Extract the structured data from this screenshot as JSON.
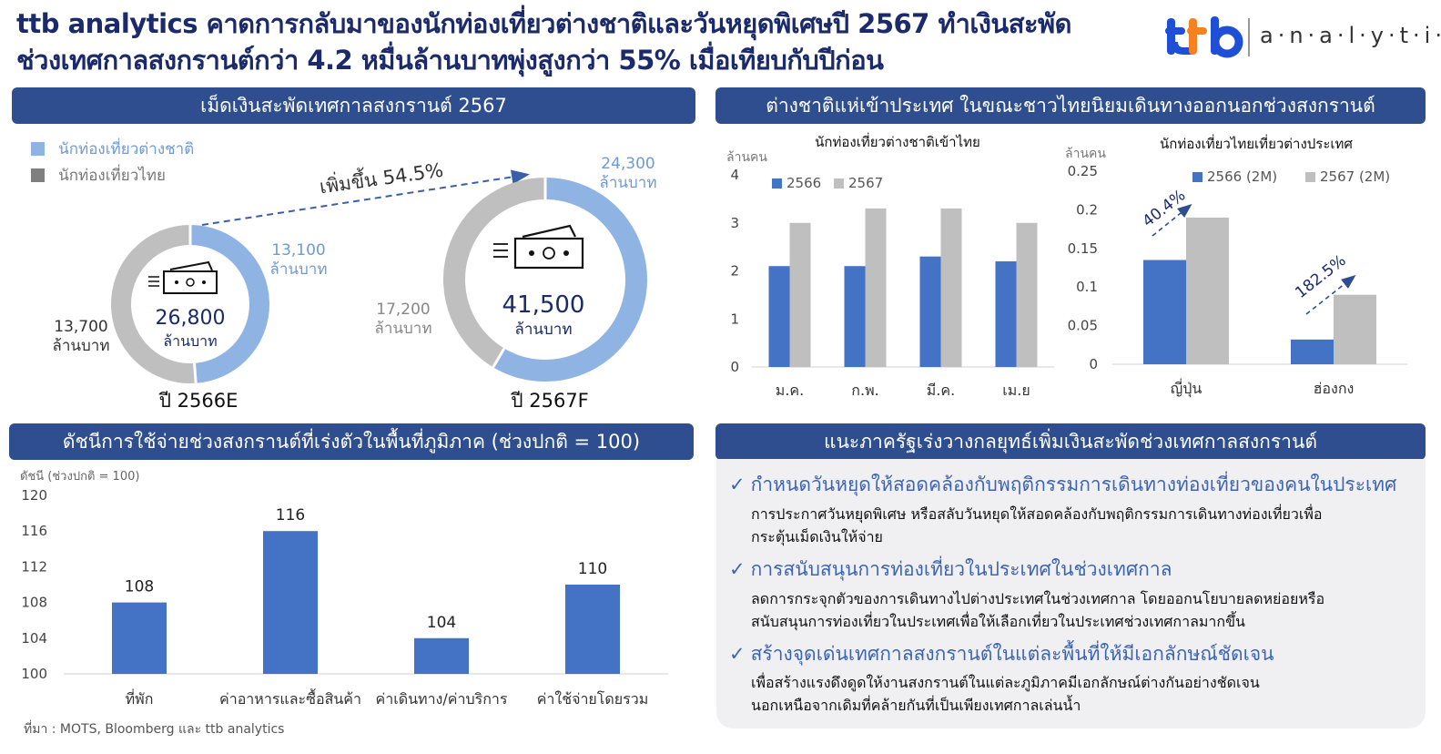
{
  "header": {
    "title_line1": "ttb analytics คาดการกลับมาของนักท่องเที่ยวต่างชาติและวันหยุดพิเศษปี 2567 ทำเงินสะพัด",
    "title_line2": "ช่วงเทศกาลสงกรานต์กว่า 4.2 หมื่นล้านบาทพุ่งสูงกว่า 55% เมื่อเทียบกับปีก่อน",
    "logo_text": "analytics",
    "logo_mark": "ttb"
  },
  "colors": {
    "header_bg": "#2e4e8f",
    "blue": "#4472c4",
    "light_blue": "#8fb4e3",
    "gray": "#bfbfbf",
    "dark_gray": "#7f7f7f",
    "navy": "#1b2a6b"
  },
  "panel1": {
    "header": "เม็ดเงินสะพัดเทศกาลสงกรานต์ 2567",
    "legend": [
      "นักท่องเที่ยวต่างชาติ",
      "นักท่องเที่ยวไทย"
    ],
    "growth_label": "เพิ่มขึ้น 54.5%",
    "unit": "ล้านบาท",
    "donut_2566": {
      "year_label": "ปี 2566E",
      "total": "26,800",
      "foreign": "13,100",
      "thai": "13,700"
    },
    "donut_2567": {
      "year_label": "ปี 2567F",
      "total": "41,500",
      "foreign": "24,300",
      "thai": "17,200"
    }
  },
  "panel2": {
    "header": "ต่างชาติแห่เข้าประเทศ ในขณะชาวไทยนิยมเดินทางออกนอกช่วงสงกรานต์",
    "left_title": "นักท่องเที่ยวต่างชาติเข้าไทย",
    "right_title": "นักท่องเที่ยวไทยเที่ยวต่างประเทศ",
    "unit": "ล้านคน",
    "left_growth_labels": [],
    "right_growth_labels": [
      "40.4%",
      "182.5%"
    ]
  },
  "panel3": {
    "header": "ดัชนีการใช้จ่ายช่วงสงกรานต์ที่เร่งตัวในพื้นที่ภูมิภาค (ช่วงปกติ = 100)",
    "axis_title": "ดัชนี (ช่วงปกติ = 100)"
  },
  "panel4": {
    "header": "แนะภาครัฐเร่งวางกลยุทธ์เพิ่มเงินสะพัดช่วงเทศกาลสงกรานต์",
    "check": "✓",
    "items": [
      {
        "title": "กำหนดวันหยุดให้สอดคล้องกับพฤติกรรมการเดินทางท่องเที่ยวของคนในประเทศ",
        "line1": "การประกาศวันหยุดพิเศษ  หรือสลับวันหยุดให้สอดคล้องกับพฤติกรรมการเดินทางท่องเที่ยวเพื่อ",
        "line2": "กระตุ้นเม็ดเงินให้จ่าย"
      },
      {
        "title": "การสนับสนุนการท่องเที่ยวในประเทศในช่วงเทศกาล",
        "line1": "ลดการกระจุกตัวของการเดินทางไปต่างประเทศในช่วงเทศกาล  โดยออกนโยบายลดหย่อยหรือ",
        "line2": "สนับสนุนการท่องเที่ยวในประเทศเพื่อให้เลือกเที่ยวในประเทศช่วงเทศกาลมากขึ้น"
      },
      {
        "title": "สร้างจุดเด่นเทศกาลสงกรานต์ในแต่ละพื้นที่ให้มีเอกลักษณ์ชัดเจน",
        "line1": "เพื่อสร้างแรงดึงดูดให้งานสงกรานต์ในแต่ละภูมิภาคมีเอกลักษณ์ต่างกันอย่างชัดเจน",
        "line2": "นอกเหนือจากเดิมที่คล้ายกันที่เป็นเพียงเทศกาลเล่นน้ำ"
      }
    ]
  },
  "source": "ที่มา : MOTS, Bloomberg และ ttb  analytics",
  "chart_data": [
    {
      "type": "pie",
      "title": "ปี 2566E",
      "categories": [
        "นักท่องเที่ยวต่างชาติ",
        "นักท่องเที่ยวไทย"
      ],
      "values": [
        13100,
        13700
      ],
      "total": 26800
    },
    {
      "type": "pie",
      "title": "ปี 2567F",
      "categories": [
        "นักท่องเที่ยวต่างชาติ",
        "นักท่องเที่ยวไทย"
      ],
      "values": [
        24300,
        17200
      ],
      "total": 41500
    },
    {
      "type": "bar",
      "title": "นักท่องเที่ยวต่างชาติเข้าไทย",
      "categories": [
        "ม.ค.",
        "ก.พ.",
        "มี.ค.",
        "เม.ย"
      ],
      "series": [
        {
          "name": "2566",
          "values": [
            2.1,
            2.1,
            2.3,
            2.2
          ]
        },
        {
          "name": "2567",
          "values": [
            3.0,
            3.3,
            3.3,
            3.0
          ]
        }
      ],
      "ylabel": "ล้านคน",
      "ylim": [
        0,
        4
      ],
      "yticks": [
        "0",
        "1",
        "2",
        "3",
        "4"
      ],
      "legend": "top-left"
    },
    {
      "type": "bar",
      "title": "นักท่องเที่ยวไทยเที่ยวต่างประเทศ",
      "categories": [
        "ญี่ปุ่น",
        "ฮ่องกง"
      ],
      "series": [
        {
          "name": "2566 (2M)",
          "values": [
            0.135,
            0.032
          ]
        },
        {
          "name": "2567 (2M)",
          "values": [
            0.19,
            0.09
          ]
        }
      ],
      "ylabel": "ล้านคน",
      "ylim": [
        0,
        0.25
      ],
      "yticks": [
        "0",
        "0.05",
        "0.1",
        "0.15",
        "0.2",
        "0.25"
      ],
      "legend": "top-right",
      "annotations": [
        "40.4%",
        "182.5%"
      ]
    },
    {
      "type": "bar",
      "title": "",
      "categories": [
        "ที่พัก",
        "ค่าอาหารและซื้อสินค้า",
        "ค่าเดินทาง/ค่าบริการ",
        "ค่าใช้จ่ายโดยรวม"
      ],
      "values": [
        108,
        116,
        104,
        110
      ],
      "ylabel": "ดัชนี (ช่วงปกติ = 100)",
      "ylim": [
        100,
        120
      ],
      "yticks": [
        "100",
        "104",
        "108",
        "112",
        "116",
        "120"
      ]
    }
  ]
}
